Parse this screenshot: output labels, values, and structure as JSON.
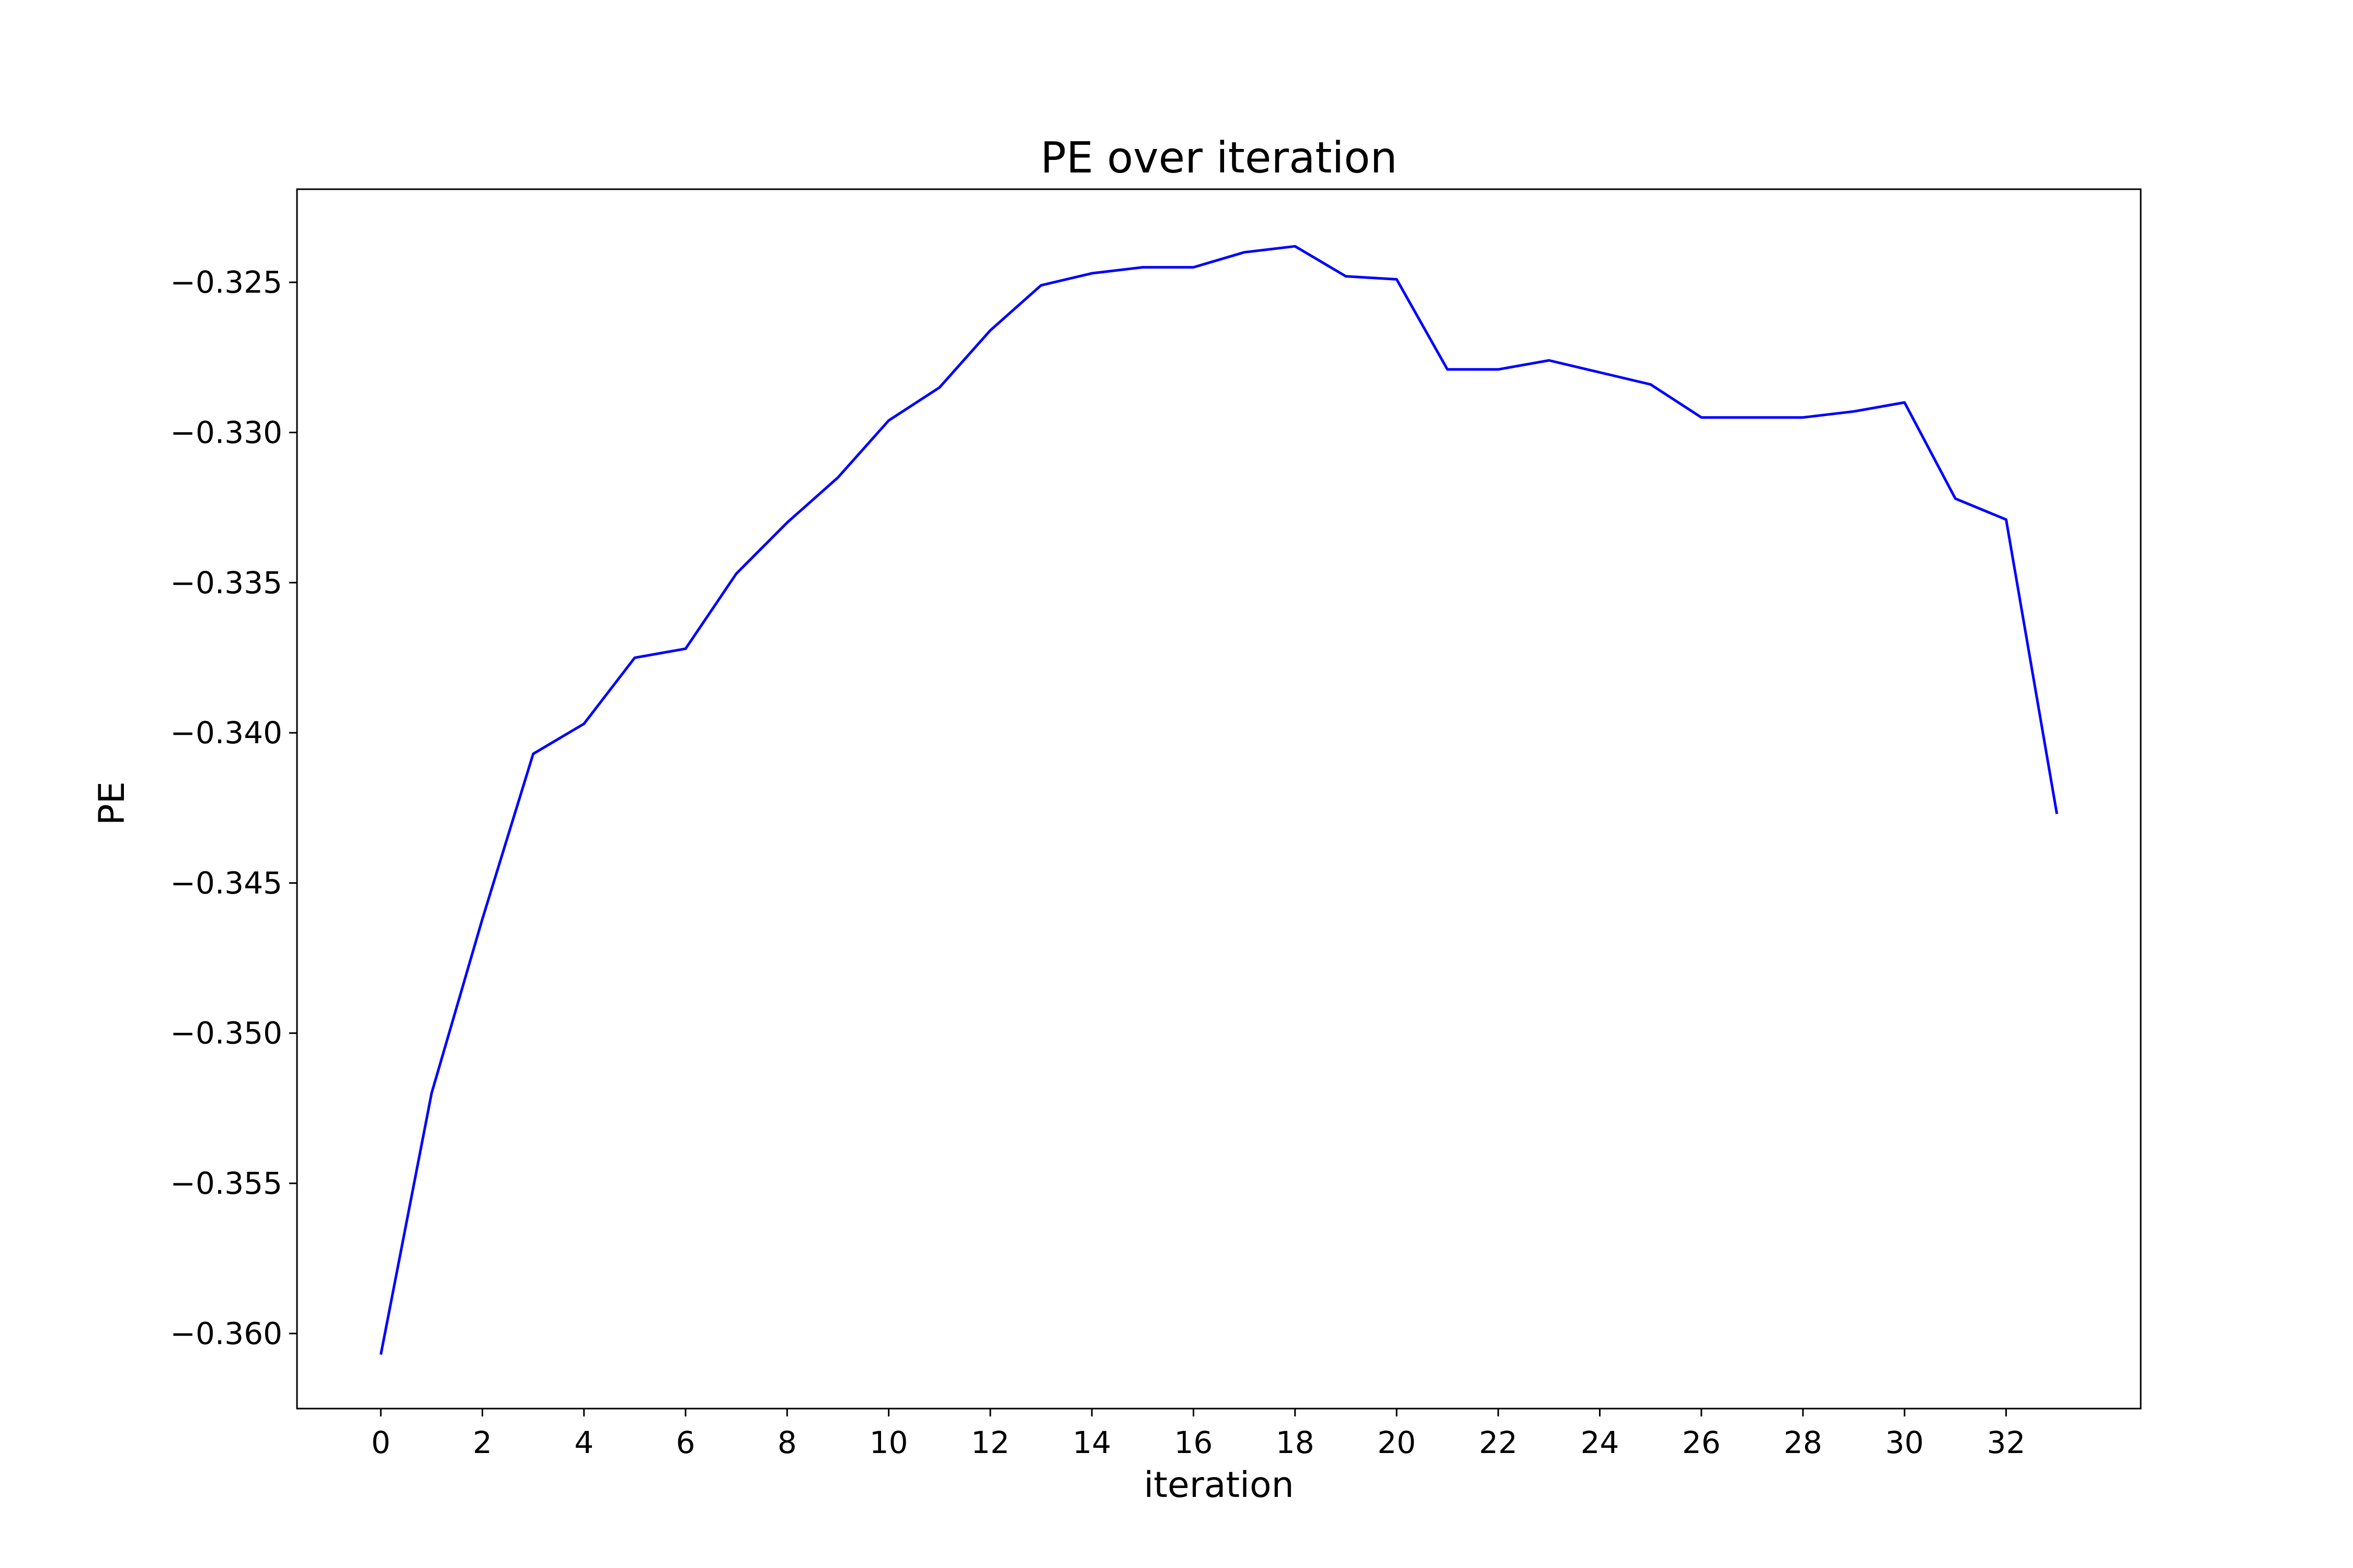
{
  "chart_data": {
    "type": "line",
    "title": "PE over iteration",
    "xlabel": "iteration",
    "ylabel": "PE",
    "xlim": [
      -1.65,
      34.65
    ],
    "ylim": [
      -0.3625,
      -0.3219
    ],
    "xticks": [
      0,
      2,
      4,
      6,
      8,
      10,
      12,
      14,
      16,
      18,
      20,
      22,
      24,
      26,
      28,
      30,
      32
    ],
    "yticks": [
      -0.36,
      -0.355,
      -0.35,
      -0.345,
      -0.34,
      -0.335,
      -0.33,
      -0.325
    ],
    "ytick_labels": [
      "−0.360",
      "−0.355",
      "−0.350",
      "−0.345",
      "−0.340",
      "−0.335",
      "−0.330",
      "−0.325"
    ],
    "grid": false,
    "line_color": "#0000ff",
    "series": [
      {
        "x": [
          0,
          1,
          2,
          3,
          4,
          5,
          6,
          7,
          8,
          9,
          10,
          11,
          12,
          13,
          14,
          15,
          16,
          17,
          18,
          19,
          20,
          21,
          22,
          23,
          24,
          25,
          26,
          27,
          28,
          29,
          30,
          31,
          32,
          33
        ],
        "values": [
          -0.3607,
          -0.352,
          -0.3462,
          -0.3407,
          -0.3397,
          -0.3375,
          -0.3372,
          -0.3347,
          -0.333,
          -0.3315,
          -0.3296,
          -0.3285,
          -0.3266,
          -0.3251,
          -0.3247,
          -0.3245,
          -0.3245,
          -0.324,
          -0.3238,
          -0.3248,
          -0.3249,
          -0.3279,
          -0.3279,
          -0.3276,
          -0.328,
          -0.3284,
          -0.3295,
          -0.3295,
          -0.3295,
          -0.3293,
          -0.329,
          -0.3322,
          -0.3329,
          -0.3427
        ]
      }
    ]
  }
}
